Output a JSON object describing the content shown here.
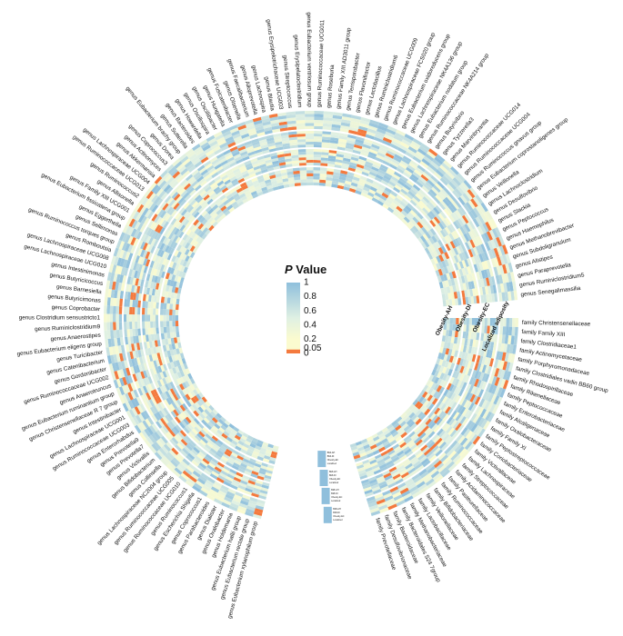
{
  "chart_data": {
    "type": "heatmap",
    "title": "",
    "legend": {
      "title_italic": "P",
      "title_rest": " Value",
      "ticks": [
        "1",
        "0.8",
        "0.6",
        "0.4",
        "0.2",
        "0.05",
        "0"
      ],
      "tick_values": [
        1,
        0.8,
        0.6,
        0.4,
        0.2,
        0.05,
        0
      ],
      "colors": {
        "high": "#8fbfdc",
        "mid": "#fbfbcf",
        "low": "#f47a3e"
      },
      "placement": "center"
    },
    "tracks": [
      "Obesity-AH",
      "Obesity-DI",
      "Obesity-EC",
      "Localized adiposity"
    ],
    "genus": [
      "genus Streptococcus",
      "genus Erysipelatoclostridium",
      "genus Eubacterium ventriosum group",
      "genus Ruminococcaceae UCG011",
      "genus Roseburia",
      "genus Family XIII AD3011 group",
      "genus Terrisporobacter",
      "genus Flavonifractor",
      "genus Lactobacillus",
      "genus Ruminiclostridium6",
      "genus Ruminococcaceae UCG009",
      "genus Lachnospiraceae FCS020 group",
      "genus Eubacterium oxidoreducens group",
      "genus Lachnospiraceae NK4A136 group",
      "genus Eubacterium nodatum group",
      "genus Ruminococcaceae NK4A214 group",
      "genus Butyrivibrio",
      "genus Tyzzerella3",
      "genus Marvinbryantia",
      "genus Ruminococcaceae UCG014",
      "genus Ruminococcaceae UCG004",
      "genus Ruminococcus gnavus group",
      "genus Eubacterium coprostanoligenes group",
      "genus Veillonella",
      "genus Lachnoclostridium",
      "genus Desulfovibrio",
      "genus Slackia",
      "genus Peptococcus",
      "genus Haemophilus",
      "genus Methanobrevibacter",
      "genus Subdoligranulum",
      "genus Alistipes",
      "genus Paraprevotella",
      "genus Ruminiclostridium5",
      "genus Senegalimassilia",
      "genus Eubacterium xylanophilum group",
      "genus Eubacterium rectale group",
      "genus Eubacterium hallii group",
      "genus Holdemania",
      "genus Oxalobacter",
      "genus Dialister",
      "genus Parabacteroides",
      "genus Coprococcus1",
      "genus Escherichia Shigella",
      "genus Ruminococcus1",
      "genus Ruminococcaceae UCG010",
      "genus Ruminococcaceae UCG005",
      "genus Lachnospiraceae NC2004 group",
      "genus Collinsella",
      "genus Bifidobacterium",
      "genus Victivallis",
      "genus Prevotella7",
      "genus Prevotella9",
      "genus Enterorhabdus",
      "genus Ruminococcaceae UCG003",
      "genus Lachnospiraceae UCG001",
      "genus Intestinibacter",
      "genus Christensenellaceae R 7 group",
      "genus Eubacterium ruminantium group",
      "genus Anaerotruncus",
      "genus Ruminococcaceae UCG002",
      "genus Gordonibacter",
      "genus Catenibacterium",
      "genus Turicibacter",
      "genus Eubacterium eligens group",
      "genus Anaerostipes",
      "genus Ruminiclostridium9",
      "genus Clostridium sensustricto1",
      "genus Coprobacter",
      "genus Butyricimonas",
      "genus Barnesiella",
      "genus Butyricicoccus",
      "genus Intestinimonas",
      "genus Lachnospiraceae UCG010",
      "genus Lachnospiraceae UCG008",
      "genus Romboutsia",
      "genus Ruminococcus torques group",
      "genus Sellimonas",
      "genus Eggerthella",
      "genus Eubacterium fissicatena group",
      "genus Family XIII UCG001",
      "genus Allisonella",
      "genus Ruminococcus2",
      "genus Ruminococcaceae UCG013",
      "genus Lachnospiraceae UCG004",
      "genus Akkermansia",
      "genus Actinomyces",
      "genus Coprococcus3",
      "genus Dorea",
      "genus Eubacterium brachy group",
      "genus Sutterella",
      "genus Bacteroides",
      "genus Howardella",
      "genus Oscillospira",
      "genus Oscillibacter",
      "genus Hungatella",
      "genus Fusicatenibacter",
      "genus Olsenella",
      "genus Faecalibacterium",
      "genus Alloprevotella",
      "genus Lachnospira",
      "genus Blautia",
      "genus Erysipelotrichaceae UCG003"
    ],
    "family": [
      "family Christensenellaceae",
      "family Family XIII",
      "family Clostridiaceae1",
      "family Actinomycetaceae",
      "family Porphyromonadaceae",
      "family Clostridiales vadin BB60 group",
      "family Rhodospirillaceae",
      "family Rikenellaceae",
      "family Peptococcaceae",
      "family Enterobacteriaceae",
      "family Alcaligenaceae",
      "family Oxalobacteraceae",
      "family Family XI",
      "family Peptostreptococcaceae",
      "family Coriobacteriaceae",
      "family Victivallaceae",
      "family Lachnospiraceae",
      "family Streptococcaceae",
      "family Acidaminococcaceae",
      "family Pasteurellaceae",
      "family Ruminococcaceae",
      "family Bifidobacteriaceae",
      "family Veillonellaceae",
      "family Lactobacillaceae",
      "family Methanobacteriaceae",
      "family Bacteroidales S24 7group",
      "family Bacteroidaceae",
      "family Desulfovibrionaceae",
      "family Prevotellaceae"
    ],
    "small_legend": [
      "BMI-AH",
      "BMI-DI",
      "Obesity-EC",
      "Localized"
    ]
  }
}
